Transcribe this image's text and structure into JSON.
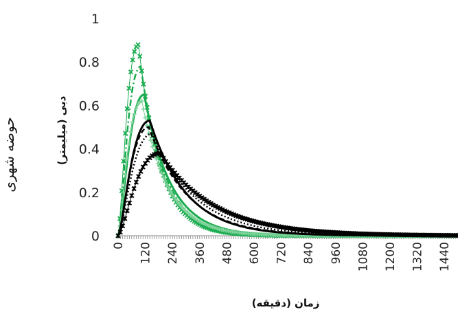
{
  "chart_data": {
    "type": "line",
    "title": "",
    "side_label": "حوضه شهری",
    "ylabel": "دبی (میلیمتر)",
    "xlabel": "زمان (دقیقه)",
    "ylim": [
      0,
      1
    ],
    "xlim": [
      0,
      1500
    ],
    "y_ticks": [
      "0",
      "0.2",
      "0.4",
      "0.6",
      "0.8",
      "1"
    ],
    "x_ticks": [
      "0",
      "120",
      "240",
      "360",
      "480",
      "600",
      "720",
      "840",
      "960",
      "1080",
      "1200",
      "1320",
      "1440"
    ],
    "colors": {
      "green": "#1aab4f",
      "black": "#000000",
      "light_green": "#7fd39b"
    },
    "series": [
      {
        "color": "green",
        "style": "cross-markers",
        "peak_time": 90,
        "peak": 0.88,
        "recession_k": 0.0105
      },
      {
        "color": "green",
        "style": "dash-dot",
        "peak_time": 100,
        "peak": 0.78,
        "recession_k": 0.0095
      },
      {
        "color": "green",
        "style": "solid",
        "peak_time": 115,
        "peak": 0.65,
        "recession_k": 0.0085
      },
      {
        "color": "light_green",
        "style": "plus-markers",
        "peak_time": 105,
        "peak": 0.62,
        "recession_k": 0.0088
      },
      {
        "color": "black",
        "style": "solid",
        "peak_time": 140,
        "peak": 0.53,
        "recession_k": 0.0062
      },
      {
        "color": "black",
        "style": "dash",
        "peak_time": 135,
        "peak": 0.5,
        "recession_k": 0.0058
      },
      {
        "color": "black",
        "style": "dot",
        "peak_time": 150,
        "peak": 0.47,
        "recession_k": 0.0052
      },
      {
        "color": "black",
        "style": "star-markers",
        "peak_time": 185,
        "peak": 0.38,
        "recession_k": 0.0042
      }
    ]
  }
}
